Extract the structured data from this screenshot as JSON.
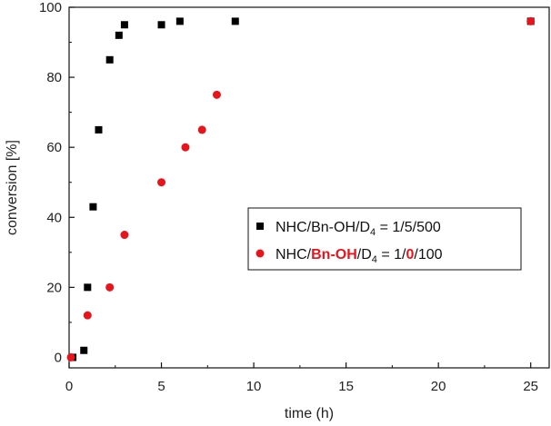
{
  "chart_data": {
    "type": "scatter",
    "title": "",
    "xlabel": "time (h)",
    "ylabel": "conversion [%]",
    "xlim": [
      0,
      26
    ],
    "ylim": [
      -3,
      100
    ],
    "xticks": [
      0,
      5,
      10,
      15,
      20,
      25
    ],
    "yticks": [
      0,
      20,
      40,
      60,
      80,
      100
    ],
    "xtick_labels": [
      "0",
      "5",
      "10",
      "15",
      "20",
      "25"
    ],
    "ytick_labels": [
      "0",
      "20",
      "40",
      "60",
      "80",
      "100"
    ],
    "legend_position": "center-right",
    "series": [
      {
        "name": "NHC/Bn-OH/D4 = 1/5/500",
        "legend_parts": [
          "NHC/Bn-OH/D",
          "4",
          " = 1/5/500"
        ],
        "marker": "square",
        "color": "#000000",
        "x": [
          0.2,
          0.8,
          1.0,
          1.3,
          1.6,
          2.2,
          2.7,
          3.0,
          5.0,
          6.0,
          9.0,
          25.0
        ],
        "y": [
          0,
          2,
          20,
          43,
          65,
          85,
          92,
          95,
          95,
          96,
          96,
          96
        ]
      },
      {
        "name": "NHC/Bn-OH/D4 = 1/0/100",
        "legend_parts": [
          "NHC/",
          "Bn-OH",
          "/D",
          "4",
          " = 1/",
          "0",
          "/100"
        ],
        "marker": "circle",
        "color": "#e8141c",
        "x": [
          0.1,
          1.0,
          2.2,
          3.0,
          5.0,
          6.3,
          7.2,
          8.0,
          25.0
        ],
        "y": [
          0,
          12,
          20,
          35,
          50,
          60,
          65,
          75,
          96
        ]
      }
    ]
  }
}
